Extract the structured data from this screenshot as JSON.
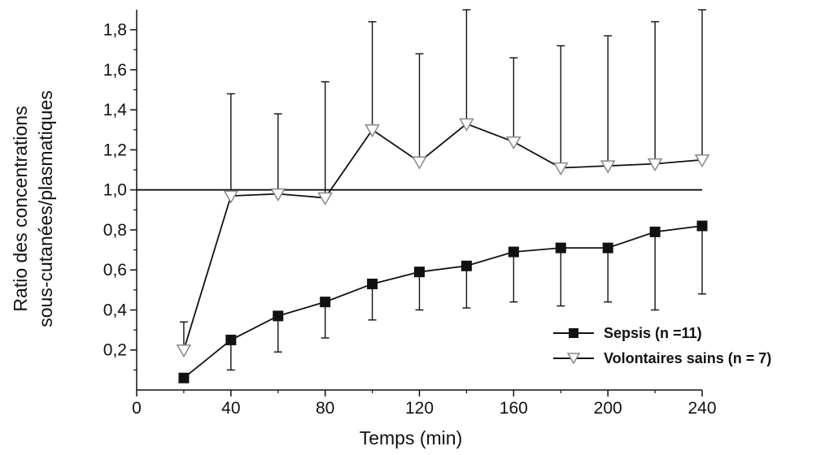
{
  "chart_data": {
    "type": "line",
    "title": "",
    "xlabel": "Temps (min)",
    "ylabel_lines": [
      "Ratio des concentrations",
      "sous-cutanées/plasmatiques"
    ],
    "xlim": [
      0,
      240
    ],
    "ylim": [
      0,
      1.9
    ],
    "x_ticks": [
      "0",
      "40",
      "80",
      "120",
      "160",
      "200",
      "240"
    ],
    "y_ticks": [
      "0,2",
      "0,4",
      "0,6",
      "0,8",
      "1,0",
      "1,2",
      "1,4",
      "1,6",
      "1,8"
    ],
    "reference_line": 1.0,
    "grid": false,
    "legend_position": "bottom-right",
    "x": [
      20,
      40,
      60,
      80,
      100,
      120,
      140,
      160,
      180,
      200,
      220,
      240
    ],
    "series": [
      {
        "name": "Sepsis (n =11)",
        "marker": "filled-square",
        "error_direction": "down",
        "values": [
          0.06,
          0.25,
          0.37,
          0.44,
          0.53,
          0.59,
          0.62,
          0.69,
          0.71,
          0.71,
          0.79,
          0.82
        ],
        "error_ends": [
          0.06,
          0.1,
          0.19,
          0.26,
          0.35,
          0.4,
          0.41,
          0.44,
          0.42,
          0.44,
          0.4,
          0.48
        ]
      },
      {
        "name": "Volontaires sains (n = 7)",
        "marker": "open-triangle-down",
        "error_direction": "up",
        "values": [
          0.2,
          0.97,
          0.98,
          0.96,
          1.3,
          1.14,
          1.33,
          1.24,
          1.11,
          1.12,
          1.13,
          1.15
        ],
        "error_ends": [
          0.34,
          1.48,
          1.38,
          1.54,
          1.84,
          1.68,
          1.9,
          1.66,
          1.72,
          1.77,
          1.84,
          1.9
        ]
      }
    ]
  }
}
